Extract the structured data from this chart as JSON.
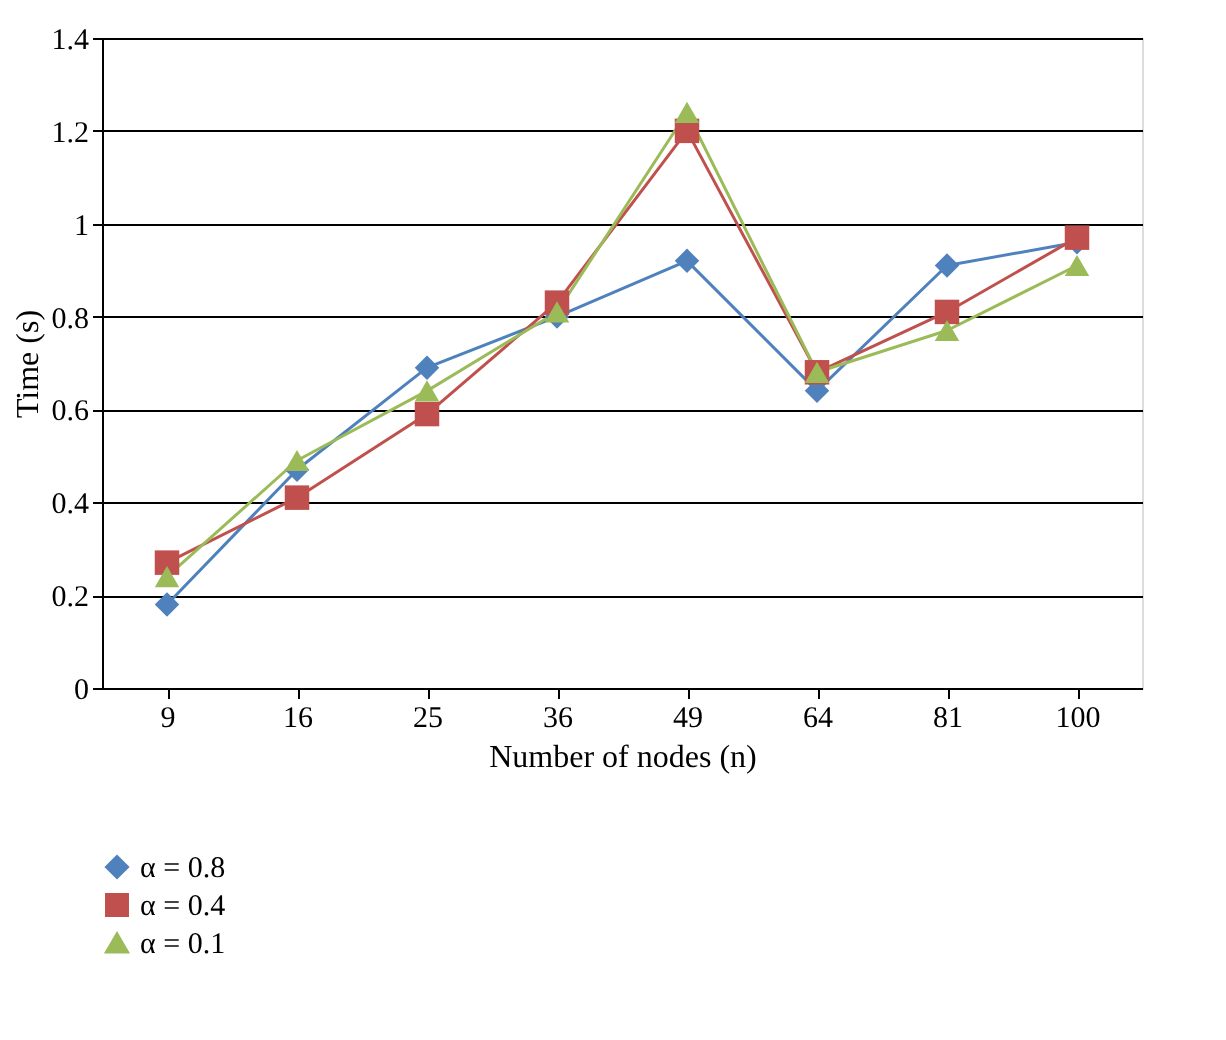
{
  "chart_data": {
    "type": "line",
    "xlabel": "Number of nodes (n)",
    "ylabel": "Time (s)",
    "categories": [
      "9",
      "16",
      "25",
      "36",
      "49",
      "64",
      "81",
      "100"
    ],
    "series": [
      {
        "name": "α = 0.8",
        "color": "#4f81bd",
        "marker": "diamond",
        "values": [
          0.18,
          0.47,
          0.69,
          0.8,
          0.92,
          0.64,
          0.91,
          0.96
        ]
      },
      {
        "name": "α = 0.4",
        "color": "#c0504d",
        "marker": "square",
        "values": [
          0.27,
          0.41,
          0.59,
          0.83,
          1.2,
          0.68,
          0.81,
          0.97
        ]
      },
      {
        "name": "α = 0.1",
        "color": "#9bbb59",
        "marker": "triangle",
        "values": [
          0.24,
          0.49,
          0.64,
          0.81,
          1.24,
          0.68,
          0.77,
          0.91
        ]
      }
    ],
    "ylim": [
      0,
      1.4
    ],
    "yticks": [
      0,
      0.2,
      0.4,
      0.6,
      0.8,
      1,
      1.2,
      1.4
    ],
    "grid": "y",
    "legend": "bottom left",
    "line_style": "solid"
  }
}
